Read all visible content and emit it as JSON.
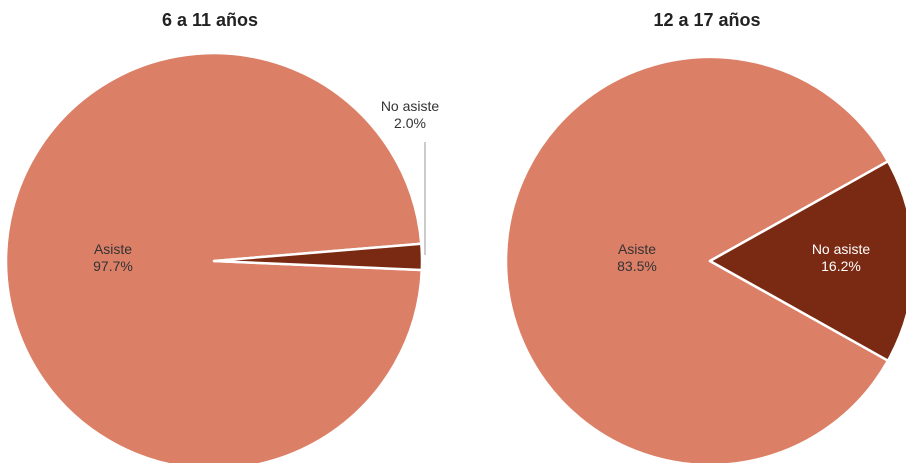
{
  "chart_data": [
    {
      "type": "pie",
      "title": "6 a 11 años",
      "slices": [
        {
          "label": "Asiste",
          "value": 97.7,
          "value_label": "97.7%",
          "color": "#dc7f67"
        },
        {
          "label": "No asiste",
          "value": 2.0,
          "value_label": "2.0%",
          "color": "#7a2a12"
        }
      ]
    },
    {
      "type": "pie",
      "title": "12 a 17 años",
      "slices": [
        {
          "label": "Asiste",
          "value": 83.5,
          "value_label": "83.5%",
          "color": "#dc7f67"
        },
        {
          "label": "No asiste",
          "value": 16.2,
          "value_label": "16.2%",
          "color": "#7a2a12"
        }
      ]
    }
  ]
}
